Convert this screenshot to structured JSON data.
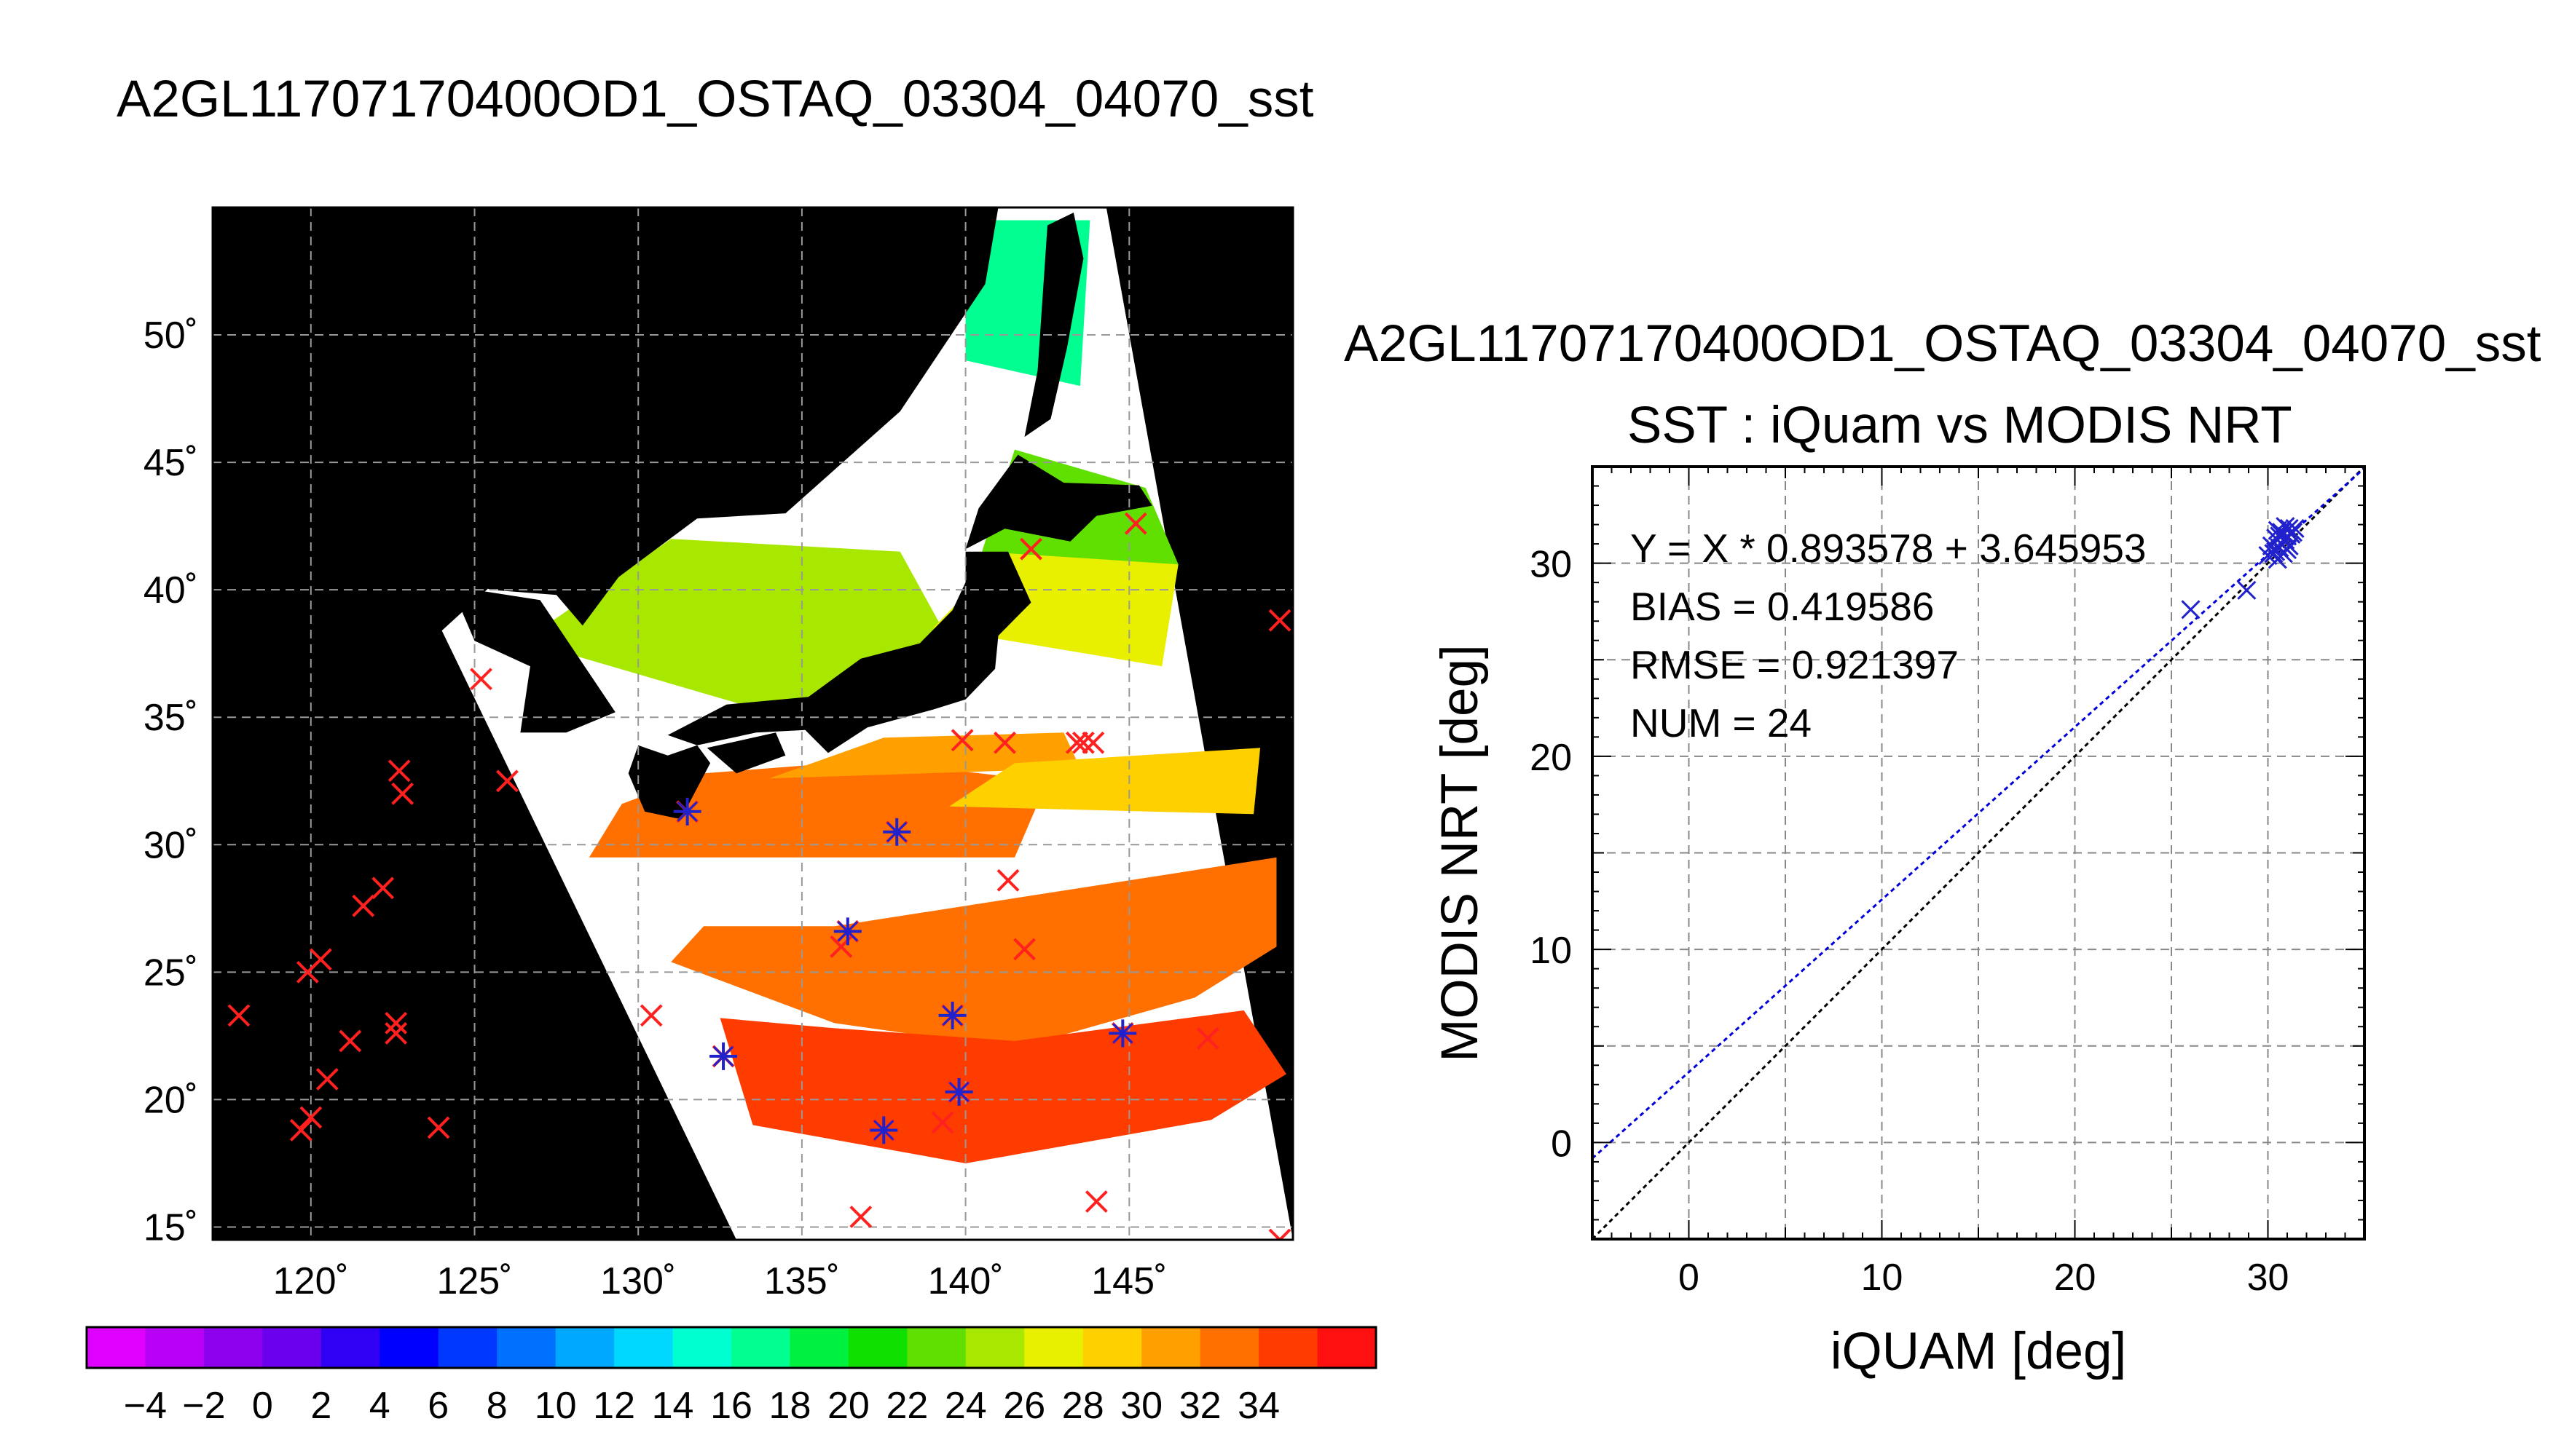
{
  "figure_title": "A2GL11707170400OD1_OSTAQ_03304_04070_sst",
  "colors": {
    "insitu_marker": "#ff2020",
    "modis_marker": "#2222cc",
    "fit_line": "#0000dd",
    "one_to_one_line": "#000000"
  },
  "chart_data": [
    {
      "type": "heatmap",
      "title": "A2GL11707170400OD1_OSTAQ_03304_04070_sst",
      "xlabel": "",
      "ylabel": "",
      "xlim": [
        117,
        150
      ],
      "ylim": [
        14.5,
        55
      ],
      "x_ticks": [
        120,
        125,
        130,
        135,
        140,
        145
      ],
      "x_tick_labels": [
        "120˚",
        "125˚",
        "130˚",
        "135˚",
        "140˚",
        "145˚"
      ],
      "y_ticks": [
        15,
        20,
        25,
        30,
        35,
        40,
        45,
        50
      ],
      "y_tick_labels": [
        "15˚",
        "20˚",
        "25˚",
        "30˚",
        "35˚",
        "40˚",
        "45˚",
        "50˚"
      ],
      "grid": true,
      "colorbar": {
        "range": [
          -5,
          35
        ],
        "tick_labels": [
          "−4",
          "−2",
          "0",
          "2",
          "4",
          "6",
          "8",
          "10",
          "12",
          "14",
          "16",
          "18",
          "20",
          "22",
          "24",
          "26",
          "28",
          "30",
          "32",
          "34"
        ],
        "colors": [
          "#e000ff",
          "#b800f6",
          "#8c00ee",
          "#6a00ee",
          "#3000f4",
          "#0000ff",
          "#0038ff",
          "#0070ff",
          "#00a8ff",
          "#00d8ff",
          "#00ffd0",
          "#00ff90",
          "#00f040",
          "#10e000",
          "#60e000",
          "#a8e800",
          "#e8f000",
          "#ffd000",
          "#ffa000",
          "#ff7000",
          "#ff3c00",
          "#ff1010"
        ]
      },
      "insitu_points": [
        [
          117.8,
          23.3
        ],
        [
          119.7,
          18.8
        ],
        [
          119.9,
          25.0
        ],
        [
          120.0,
          19.3
        ],
        [
          120.3,
          25.5
        ],
        [
          120.5,
          20.8
        ],
        [
          121.2,
          22.3
        ],
        [
          121.6,
          27.6
        ],
        [
          122.2,
          28.3
        ],
        [
          122.6,
          23.0
        ],
        [
          122.6,
          22.6
        ],
        [
          122.7,
          32.9
        ],
        [
          122.8,
          32.0
        ],
        [
          123.9,
          18.9
        ],
        [
          125.2,
          36.5
        ],
        [
          126.0,
          32.5
        ],
        [
          130.4,
          23.3
        ],
        [
          131.5,
          31.3
        ],
        [
          132.6,
          21.7
        ],
        [
          136.2,
          26.0
        ],
        [
          136.4,
          26.6
        ],
        [
          136.8,
          15.4
        ],
        [
          137.5,
          18.8
        ],
        [
          137.9,
          30.5
        ],
        [
          139.3,
          19.1
        ],
        [
          139.6,
          23.3
        ],
        [
          139.8,
          20.3
        ],
        [
          139.9,
          34.1
        ],
        [
          141.2,
          34.0
        ],
        [
          141.3,
          28.6
        ],
        [
          141.8,
          25.9
        ],
        [
          142.0,
          41.6
        ],
        [
          143.4,
          34.0
        ],
        [
          143.6,
          34.0
        ],
        [
          143.9,
          34.0
        ],
        [
          144.0,
          16.0
        ],
        [
          144.8,
          22.6
        ],
        [
          145.2,
          42.6
        ],
        [
          147.4,
          22.4
        ],
        [
          149.6,
          38.8
        ],
        [
          149.6,
          14.5
        ]
      ],
      "modis_points": [
        [
          131.5,
          31.3
        ],
        [
          132.6,
          21.7
        ],
        [
          136.4,
          26.6
        ],
        [
          137.5,
          18.8
        ],
        [
          137.9,
          30.5
        ],
        [
          139.6,
          23.3
        ],
        [
          139.8,
          20.3
        ],
        [
          144.8,
          22.6
        ]
      ]
    },
    {
      "type": "scatter",
      "title": "SST : iQuam vs MODIS NRT",
      "header": "A2GL11707170400OD1_OSTAQ_03304_04070_sst",
      "xlabel": "iQUAM [deg]",
      "ylabel": "MODIS NRT [deg]",
      "xlim": [
        -5,
        35
      ],
      "ylim": [
        -5,
        35
      ],
      "x_ticks": [
        0,
        10,
        20,
        30
      ],
      "y_ticks": [
        0,
        10,
        20,
        30
      ],
      "grid": true,
      "stats": [
        "Y = X * 0.893578 + 3.645953",
        "BIAS = 0.419586",
        "RMSE = 0.921397",
        "NUM = 24"
      ],
      "fit": {
        "slope": 0.893578,
        "intercept": 3.645953
      },
      "points": [
        [
          26.0,
          27.6
        ],
        [
          28.9,
          28.6
        ],
        [
          30.0,
          30.4
        ],
        [
          30.2,
          30.9
        ],
        [
          30.4,
          30.6
        ],
        [
          30.4,
          31.3
        ],
        [
          30.5,
          30.2
        ],
        [
          30.6,
          30.8
        ],
        [
          30.7,
          31.0
        ],
        [
          30.7,
          31.6
        ],
        [
          30.8,
          30.5
        ],
        [
          30.9,
          31.2
        ],
        [
          31.0,
          31.4
        ],
        [
          31.0,
          30.7
        ],
        [
          31.1,
          31.8
        ],
        [
          31.2,
          31.5
        ],
        [
          31.3,
          31.6
        ],
        [
          30.3,
          30.5
        ],
        [
          30.6,
          31.4
        ],
        [
          30.9,
          31.9
        ],
        [
          31.4,
          31.8
        ],
        [
          30.8,
          31.5
        ],
        [
          31.1,
          30.9
        ],
        [
          30.5,
          31.7
        ]
      ]
    }
  ]
}
